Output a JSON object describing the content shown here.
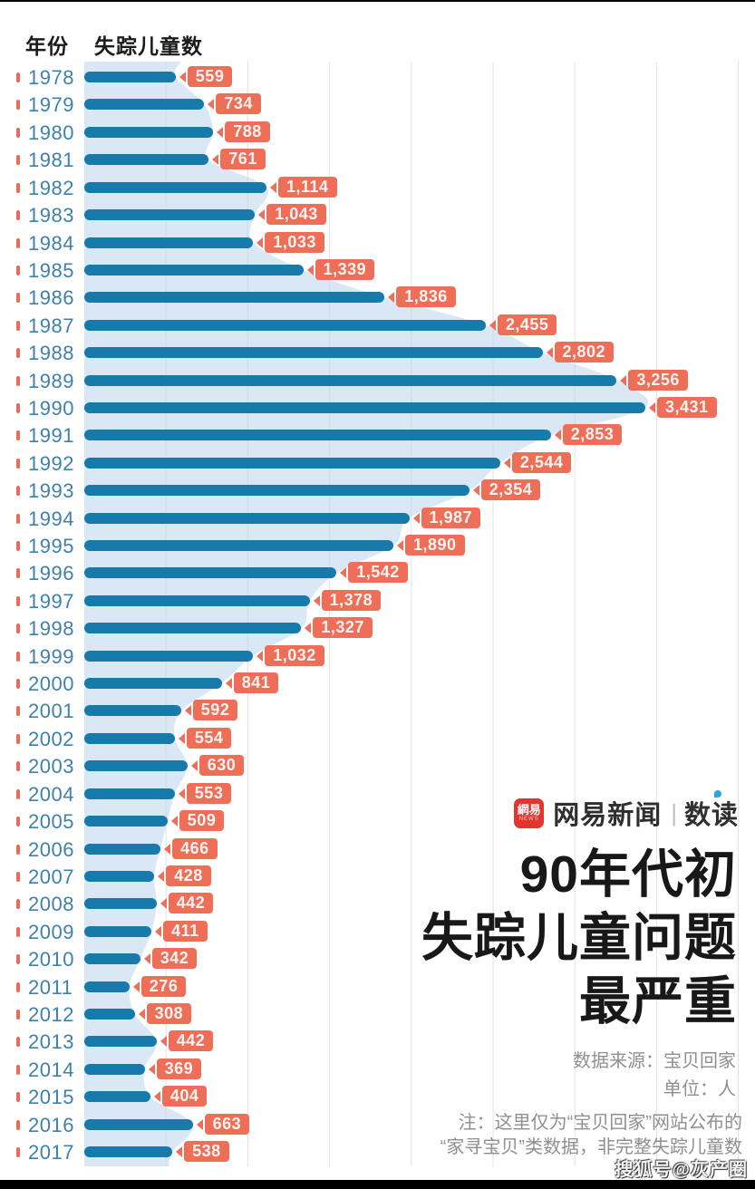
{
  "header": {
    "year_col": "年份",
    "count_col": "失踪儿童数"
  },
  "chart_data": {
    "type": "bar",
    "orientation": "horizontal",
    "title": "90年代初失踪儿童问题最严重",
    "unit": "人",
    "categories": [
      "1978",
      "1979",
      "1980",
      "1981",
      "1982",
      "1983",
      "1984",
      "1985",
      "1986",
      "1987",
      "1988",
      "1989",
      "1990",
      "1991",
      "1992",
      "1993",
      "1994",
      "1995",
      "1996",
      "1997",
      "1998",
      "1999",
      "2000",
      "2001",
      "2002",
      "2003",
      "2004",
      "2005",
      "2006",
      "2007",
      "2008",
      "2009",
      "2010",
      "2011",
      "2012",
      "2013",
      "2014",
      "2015",
      "2016",
      "2017"
    ],
    "values": [
      559,
      734,
      788,
      761,
      1114,
      1043,
      1033,
      1339,
      1836,
      2455,
      2802,
      3256,
      3431,
      2853,
      2544,
      2354,
      1987,
      1890,
      1542,
      1378,
      1327,
      1032,
      841,
      592,
      554,
      630,
      553,
      509,
      466,
      428,
      442,
      411,
      342,
      276,
      308,
      442,
      369,
      404,
      663,
      538
    ],
    "value_format": "thousands-comma",
    "xlim": [
      0,
      4100
    ],
    "gridline_step": 500,
    "grid": true,
    "has_background_area_silhouette": true
  },
  "branding": {
    "logo_zh": "網易",
    "logo_en": "NEWS",
    "brand_name": "网易新闻",
    "brand_sub": "数读"
  },
  "title": {
    "line1": "90年代初",
    "line2": "失踪儿童问题",
    "line3": "最严重"
  },
  "source": {
    "source_label": "数据来源：宝贝回家",
    "unit_label": "单位：人"
  },
  "note": {
    "line1": "注：这里仅为“宝贝回家”网站公布的",
    "line2": "“家寻宝贝”类数据，非完整失踪儿童数"
  },
  "watermark": "搜狐号@灰产圈",
  "colors": {
    "bar": "#1879ab",
    "year_label": "#3e81a9",
    "accent": "#ef6e58",
    "area_fill": "#bad6eb",
    "gridline": "#e4e7ea",
    "title_text": "#181818",
    "note_text": "#8f8f8f",
    "logo_red": "#e5332e",
    "logo_dot_blue": "#32a5dd"
  }
}
